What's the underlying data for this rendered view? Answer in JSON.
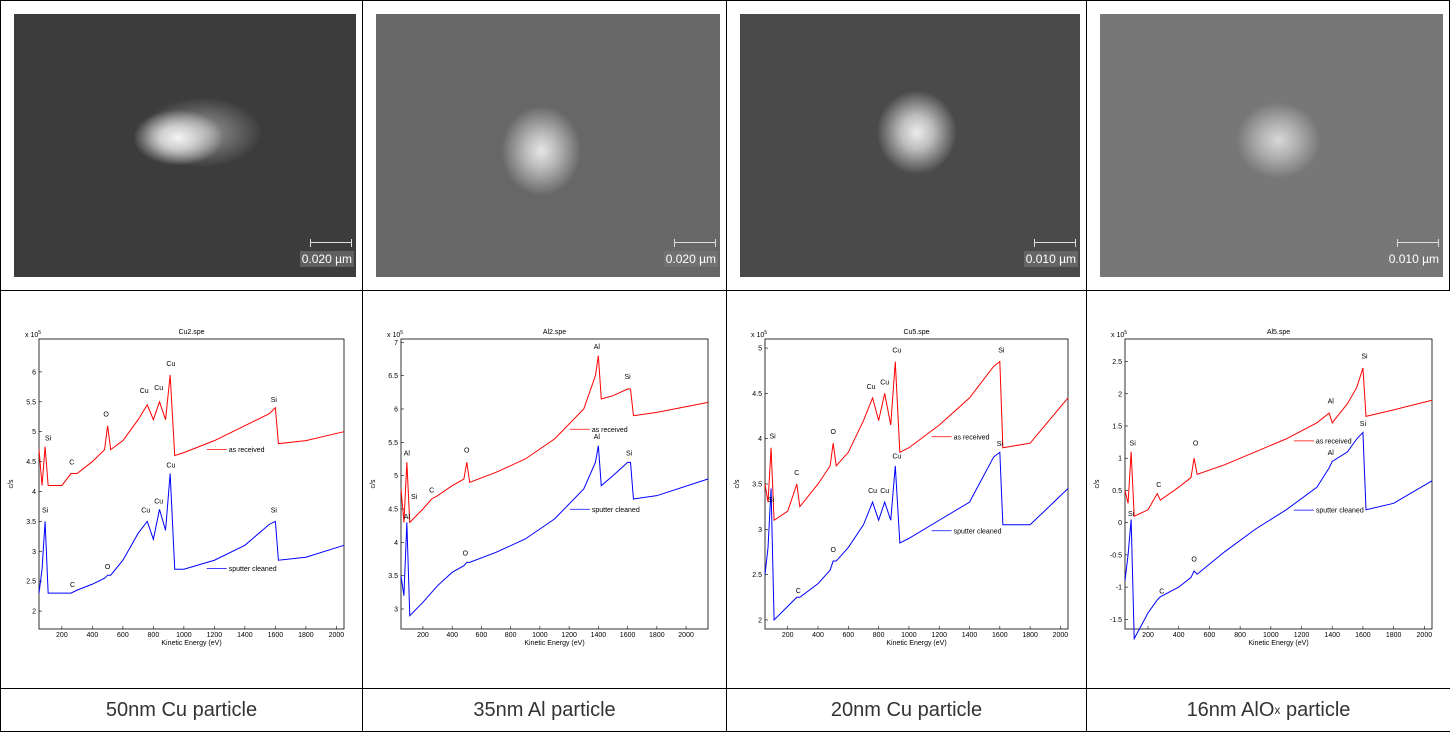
{
  "columns": [
    {
      "image": {
        "scale_bar": "0.020 µm"
      },
      "chart": {
        "type": "line",
        "title": "Cu2.spe",
        "xlabel": "Kinetic Energy (eV)",
        "ylabel": "c/s",
        "y_multiplier": {
          "base": "x 10",
          "exp": "5"
        },
        "xlim": [
          50,
          2050
        ],
        "xticks": [
          200,
          400,
          600,
          800,
          1000,
          1200,
          1400,
          1600,
          1800,
          2000
        ],
        "ylim": [
          1.7,
          6.55
        ],
        "yticks": [
          2,
          2.5,
          3,
          3.5,
          4,
          4.5,
          5,
          5.5,
          6
        ],
        "x": [
          50,
          70,
          90,
          110,
          200,
          260,
          300,
          400,
          480,
          500,
          520,
          600,
          700,
          760,
          800,
          840,
          880,
          910,
          940,
          1000,
          1200,
          1400,
          1560,
          1600,
          1620,
          1800,
          2050
        ],
        "series": [
          {
            "name": "as received",
            "color": "#ff0000",
            "values": [
              4.7,
              4.1,
              4.75,
              4.1,
              4.1,
              4.3,
              4.3,
              4.5,
              4.7,
              5.1,
              4.7,
              4.85,
              5.2,
              5.45,
              5.2,
              5.5,
              5.2,
              5.95,
              4.6,
              4.65,
              4.85,
              5.1,
              5.3,
              5.4,
              4.8,
              4.85,
              5.0
            ]
          },
          {
            "name": "sputter cleaned",
            "color": "#0000ff",
            "values": [
              2.3,
              2.7,
              3.5,
              2.3,
              2.3,
              2.3,
              2.35,
              2.45,
              2.55,
              2.6,
              2.6,
              2.85,
              3.3,
              3.5,
              3.2,
              3.7,
              3.35,
              4.3,
              2.7,
              2.7,
              2.85,
              3.1,
              3.45,
              3.5,
              2.85,
              2.9,
              3.1
            ]
          }
        ],
        "annotations": [
          {
            "text": "Si",
            "x": 110,
            "y": 4.85
          },
          {
            "text": "C",
            "x": 265,
            "y": 4.45
          },
          {
            "text": "O",
            "x": 490,
            "y": 5.25
          },
          {
            "text": "Cu",
            "x": 740,
            "y": 5.65
          },
          {
            "text": "Cu",
            "x": 835,
            "y": 5.7
          },
          {
            "text": "Cu",
            "x": 915,
            "y": 6.1
          },
          {
            "text": "Si",
            "x": 1590,
            "y": 5.5
          },
          {
            "text": "Si",
            "x": 90,
            "y": 3.65
          },
          {
            "text": "C",
            "x": 270,
            "y": 2.4
          },
          {
            "text": "O",
            "x": 500,
            "y": 2.7
          },
          {
            "text": "Cu",
            "x": 750,
            "y": 3.65
          },
          {
            "text": "Cu",
            "x": 835,
            "y": 3.8
          },
          {
            "text": "Cu",
            "x": 915,
            "y": 4.4
          },
          {
            "text": "Si",
            "x": 1590,
            "y": 3.65
          }
        ]
      },
      "caption": [
        {
          "text": "50nm Cu particle"
        }
      ]
    },
    {
      "image": {
        "scale_bar": "0.020 µm"
      },
      "chart": {
        "type": "line",
        "title": "Al2.spe",
        "xlabel": "Kinetic Energy (eV)",
        "ylabel": "c/s",
        "y_multiplier": {
          "base": "x 10",
          "exp": "5"
        },
        "xlim": [
          50,
          2150
        ],
        "xticks": [
          200,
          400,
          600,
          800,
          1000,
          1200,
          1400,
          1600,
          1800,
          2000
        ],
        "ylim": [
          2.7,
          7.05
        ],
        "yticks": [
          3,
          3.5,
          4,
          4.5,
          5,
          5.5,
          6,
          6.5,
          7
        ],
        "x": [
          50,
          70,
          90,
          110,
          200,
          260,
          300,
          400,
          480,
          500,
          520,
          700,
          900,
          1100,
          1300,
          1380,
          1400,
          1420,
          1500,
          1600,
          1620,
          1640,
          1800,
          2150
        ],
        "series": [
          {
            "name": "as received",
            "color": "#ff0000",
            "values": [
              4.8,
              4.3,
              5.2,
              4.3,
              4.5,
              4.65,
              4.7,
              4.85,
              4.95,
              5.2,
              4.9,
              5.05,
              5.25,
              5.55,
              6.0,
              6.5,
              6.8,
              6.15,
              6.2,
              6.3,
              6.3,
              5.9,
              5.95,
              6.1
            ]
          },
          {
            "name": "sputter cleaned",
            "color": "#0000ff",
            "values": [
              3.5,
              3.2,
              4.3,
              2.9,
              3.1,
              3.25,
              3.35,
              3.55,
              3.65,
              3.7,
              3.7,
              3.85,
              4.05,
              4.35,
              4.8,
              5.2,
              5.45,
              4.85,
              5.0,
              5.2,
              5.2,
              4.65,
              4.7,
              4.95
            ]
          }
        ],
        "annotations": [
          {
            "text": "Al",
            "x": 90,
            "y": 5.3
          },
          {
            "text": "Si",
            "x": 140,
            "y": 4.65
          },
          {
            "text": "C",
            "x": 260,
            "y": 4.75
          },
          {
            "text": "O",
            "x": 500,
            "y": 5.35
          },
          {
            "text": "Al",
            "x": 1390,
            "y": 6.9
          },
          {
            "text": "Si",
            "x": 1600,
            "y": 6.45
          },
          {
            "text": "Al",
            "x": 90,
            "y": 4.35
          },
          {
            "text": "O",
            "x": 490,
            "y": 3.8
          },
          {
            "text": "Al",
            "x": 1390,
            "y": 5.55
          },
          {
            "text": "Si",
            "x": 1610,
            "y": 5.3
          }
        ]
      },
      "caption": [
        {
          "text": "35nm Al particle"
        }
      ]
    },
    {
      "image": {
        "scale_bar": "0.010 µm"
      },
      "chart": {
        "type": "line",
        "title": "Cu5.spe",
        "xlabel": "Kinetic Energy (eV)",
        "ylabel": "c/s",
        "y_multiplier": {
          "base": "x 10",
          "exp": "5"
        },
        "xlim": [
          50,
          2050
        ],
        "xticks": [
          200,
          400,
          600,
          800,
          1000,
          1200,
          1400,
          1600,
          1800,
          2000
        ],
        "ylim": [
          1.9,
          5.1
        ],
        "yticks": [
          2,
          2.5,
          3,
          3.5,
          4,
          4.5,
          5
        ],
        "x": [
          50,
          70,
          90,
          110,
          200,
          260,
          280,
          400,
          480,
          500,
          520,
          600,
          700,
          760,
          800,
          840,
          880,
          910,
          940,
          1000,
          1200,
          1400,
          1560,
          1600,
          1620,
          1800,
          2050
        ],
        "series": [
          {
            "name": "as received",
            "color": "#ff0000",
            "values": [
              3.5,
              3.3,
              3.9,
              3.1,
              3.2,
              3.5,
              3.25,
              3.5,
              3.7,
              3.95,
              3.7,
              3.85,
              4.2,
              4.45,
              4.2,
              4.5,
              4.15,
              4.85,
              3.85,
              3.9,
              4.15,
              4.45,
              4.8,
              4.85,
              3.9,
              3.95,
              4.45
            ]
          },
          {
            "name": "sputter cleaned",
            "color": "#0000ff",
            "values": [
              2.5,
              2.8,
              3.45,
              2.0,
              2.15,
              2.25,
              2.25,
              2.4,
              2.55,
              2.65,
              2.65,
              2.8,
              3.05,
              3.3,
              3.1,
              3.3,
              3.1,
              3.7,
              2.85,
              2.9,
              3.1,
              3.3,
              3.8,
              3.85,
              3.05,
              3.05,
              3.45
            ]
          }
        ],
        "annotations": [
          {
            "text": "Si",
            "x": 100,
            "y": 4.0
          },
          {
            "text": "C",
            "x": 260,
            "y": 3.6
          },
          {
            "text": "O",
            "x": 500,
            "y": 4.05
          },
          {
            "text": "Cu",
            "x": 750,
            "y": 4.55
          },
          {
            "text": "Cu",
            "x": 840,
            "y": 4.6
          },
          {
            "text": "Cu",
            "x": 920,
            "y": 4.95
          },
          {
            "text": "Si",
            "x": 1610,
            "y": 4.95
          },
          {
            "text": "Si",
            "x": 90,
            "y": 3.3
          },
          {
            "text": "C",
            "x": 270,
            "y": 2.3
          },
          {
            "text": "O",
            "x": 500,
            "y": 2.75
          },
          {
            "text": "Cu",
            "x": 760,
            "y": 3.4
          },
          {
            "text": "Cu",
            "x": 840,
            "y": 3.4
          },
          {
            "text": "Cu",
            "x": 920,
            "y": 3.78
          },
          {
            "text": "Si",
            "x": 1600,
            "y": 3.92
          }
        ]
      },
      "caption": [
        {
          "text": "20nm Cu particle"
        }
      ]
    },
    {
      "image": {
        "scale_bar": "0.010 µm"
      },
      "chart": {
        "type": "line",
        "title": "Al5.spe",
        "xlabel": "Kinetic Energy (eV)",
        "ylabel": "c/s",
        "y_multiplier": {
          "base": "x 10",
          "exp": "5"
        },
        "xlim": [
          50,
          2050
        ],
        "xticks": [
          200,
          400,
          600,
          800,
          1000,
          1200,
          1400,
          1600,
          1800,
          2000
        ],
        "ylim": [
          -1.65,
          2.85
        ],
        "yticks": [
          -1.5,
          -1,
          -0.5,
          0,
          0.5,
          1,
          1.5,
          2,
          2.5
        ],
        "x": [
          50,
          70,
          90,
          110,
          200,
          260,
          280,
          400,
          480,
          500,
          520,
          700,
          900,
          1100,
          1300,
          1380,
          1400,
          1500,
          1560,
          1600,
          1620,
          1800,
          2050
        ],
        "series": [
          {
            "name": "as received",
            "color": "#ff0000",
            "values": [
              0.5,
              0.3,
              1.1,
              0.1,
              0.2,
              0.45,
              0.35,
              0.55,
              0.7,
              1.0,
              0.75,
              0.9,
              1.1,
              1.3,
              1.55,
              1.7,
              1.55,
              1.85,
              2.1,
              2.4,
              1.65,
              1.75,
              1.9
            ]
          },
          {
            "name": "sputter cleaned",
            "color": "#0000ff",
            "values": [
              -0.9,
              -0.5,
              0.05,
              -1.8,
              -1.4,
              -1.2,
              -1.15,
              -1.0,
              -0.85,
              -0.75,
              -0.8,
              -0.45,
              -0.1,
              0.2,
              0.55,
              0.85,
              0.95,
              1.1,
              1.3,
              1.4,
              0.2,
              0.3,
              0.65
            ]
          }
        ],
        "annotations": [
          {
            "text": "Si",
            "x": 100,
            "y": 1.2
          },
          {
            "text": "C",
            "x": 270,
            "y": 0.55
          },
          {
            "text": "O",
            "x": 510,
            "y": 1.2
          },
          {
            "text": "Al",
            "x": 1390,
            "y": 1.85
          },
          {
            "text": "Si",
            "x": 1610,
            "y": 2.55
          },
          {
            "text": "Si",
            "x": 90,
            "y": 0.1
          },
          {
            "text": "C",
            "x": 290,
            "y": -1.1
          },
          {
            "text": "O",
            "x": 500,
            "y": -0.6
          },
          {
            "text": "Al",
            "x": 1390,
            "y": 1.05
          },
          {
            "text": "Si",
            "x": 1600,
            "y": 1.5
          }
        ]
      },
      "caption": [
        {
          "text": "16nm AlO"
        },
        {
          "text": "x",
          "sub": true
        },
        {
          "text": " particle"
        }
      ]
    }
  ]
}
